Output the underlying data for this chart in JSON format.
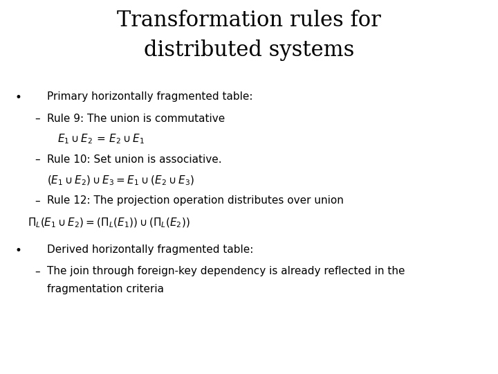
{
  "title_line1": "Transformation rules for",
  "title_line2": "distributed systems",
  "title_fontsize": 22,
  "title_font": "DejaVu Serif",
  "background_color": "#ffffff",
  "text_color": "#000000",
  "body_fontsize": 11,
  "math_fontsize": 11,
  "bullet1_header": "Primary horizontally fragmented table:",
  "bullet1_sub1_text": "Rule 9: The union is commutative",
  "bullet1_sub1_math": "$E_1 \\cup E_2\\, =\\, E_2 \\cup E_1$",
  "bullet1_sub2_text": "Rule 10: Set union is associative.",
  "bullet1_sub2_math": "$(E_1 \\cup E_2) \\cup E_3 = E_1 \\cup (E_2 \\cup E_3)$",
  "bullet1_sub3_text": "Rule 12: The projection operation distributes over union",
  "bullet1_sub3_math": "$\\Pi_L(E_1 \\cup E_2) = (\\Pi_L(E_1)) \\cup (\\Pi_L(E_2))$",
  "bullet2_header": "Derived horizontally fragmented table:",
  "bullet2_sub1_text": "The join through foreign-key dependency is already reflected in the",
  "bullet2_sub1_text2": "fragmentation criteria"
}
